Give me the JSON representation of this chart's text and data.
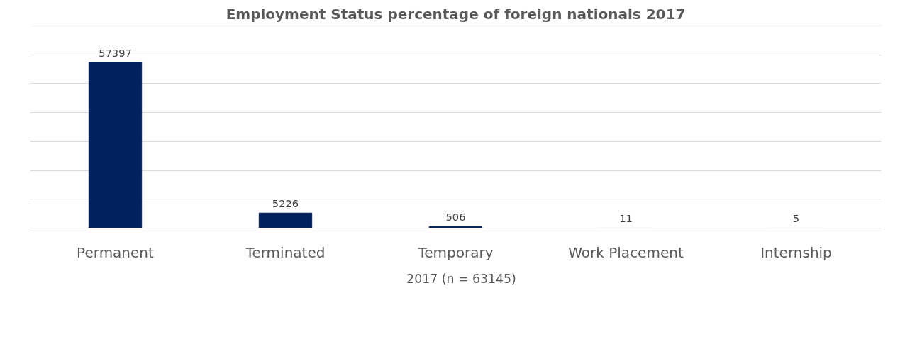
{
  "chart_data": {
    "type": "bar",
    "title": "Employment Status percentage of foreign nationals 2017",
    "categories": [
      "Permanent",
      "Terminated",
      "Temporary",
      "Work Placement",
      "Internship"
    ],
    "series": [
      {
        "name": "2017 (n = 63145)",
        "color": "#002060",
        "values": [
          57397,
          5226,
          506,
          11,
          5
        ]
      }
    ],
    "ylim": [
      0,
      70000
    ],
    "yticks": [
      {
        "value": 0,
        "label": null
      },
      {
        "value": 10000,
        "label": null
      },
      {
        "value": 20000,
        "label": null
      },
      {
        "value": 30000,
        "label": null
      },
      {
        "value": 40000,
        "label": null
      },
      {
        "value": 50000,
        "label": null
      },
      {
        "value": 60000,
        "label": null
      },
      {
        "value": 70000,
        "label": null
      }
    ],
    "tick_labels": "x",
    "grid": "y",
    "legend": "bottom",
    "data_labels": true
  }
}
